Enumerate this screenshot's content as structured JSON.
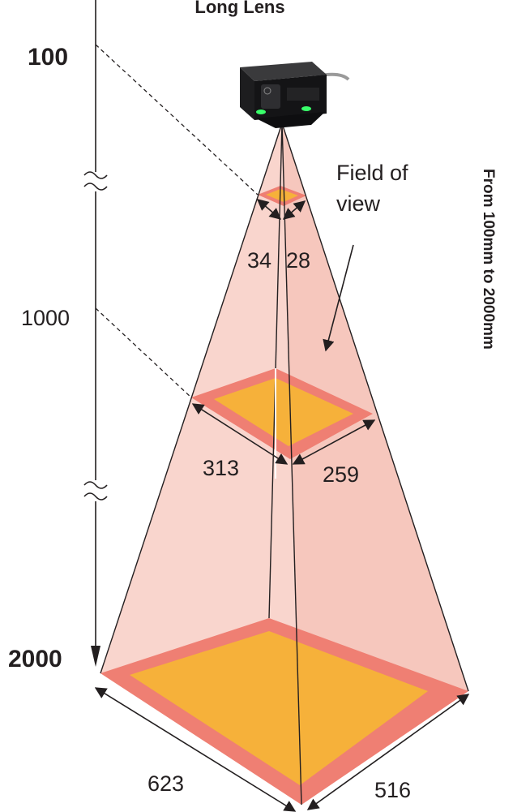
{
  "title": "Long Lens",
  "range_label": "From 100mm to 2000mm",
  "field_label_line1": "Field of",
  "field_label_line2": "view",
  "distances": {
    "near": "100",
    "mid": "1000",
    "far": "2000"
  },
  "fov": {
    "near": {
      "width": "34",
      "height": "28"
    },
    "mid": {
      "width": "313",
      "height": "259"
    },
    "far": {
      "width": "623",
      "height": "516"
    }
  },
  "colors": {
    "cone": "#f9d5cd",
    "frame": "#ef7f73",
    "area": "#f6b13a",
    "line": "#231f20",
    "led": "#39ff6a"
  }
}
